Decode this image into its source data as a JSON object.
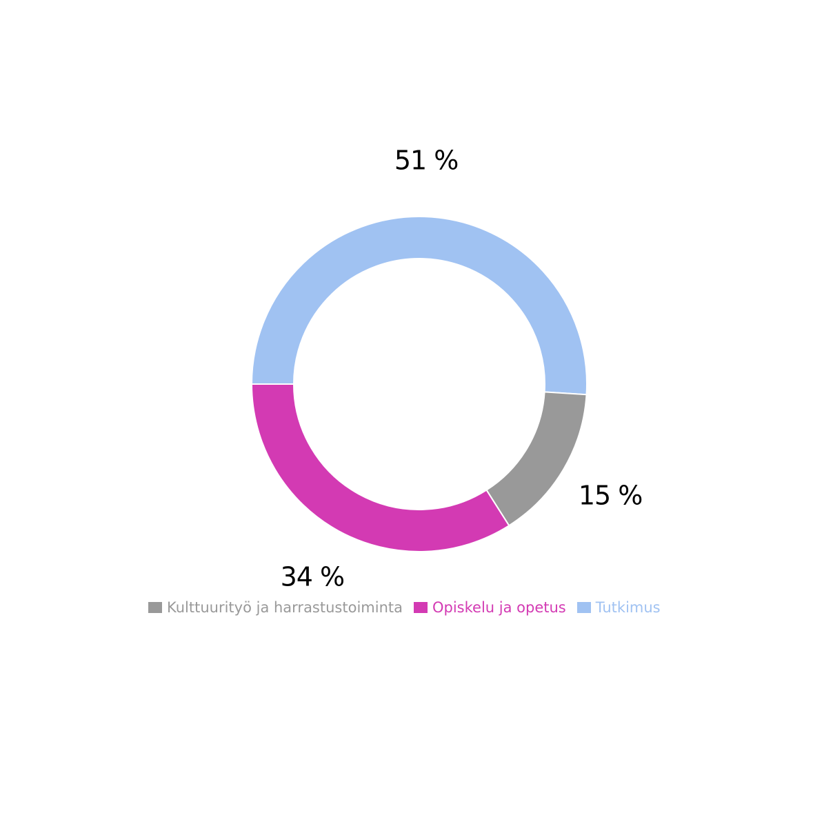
{
  "chart_data": {
    "type": "pie",
    "donut": true,
    "slices": [
      {
        "name": "Tutkimus",
        "value": 51,
        "label": "51 %",
        "color": "#a0c2f2"
      },
      {
        "name": "Kulttuurityö ja harrastustoiminta",
        "value": 15,
        "label": "15 %",
        "color": "#999999"
      },
      {
        "name": "Opiskelu ja opetus",
        "value": 34,
        "label": "34 %",
        "color": "#d33ab3"
      }
    ],
    "legend_position": "bottom"
  },
  "legend": {
    "items": [
      {
        "label": "Kulttuurityö ja harrastustoiminta",
        "color": "#999999"
      },
      {
        "label": "Opiskelu ja opetus",
        "color": "#d33ab3"
      },
      {
        "label": "Tutkimus",
        "color": "#a0c2f2"
      }
    ]
  }
}
